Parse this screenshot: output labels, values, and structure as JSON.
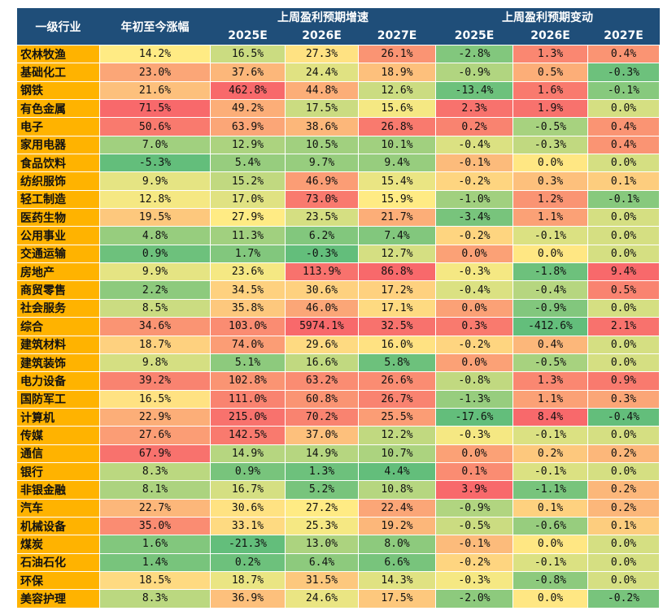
{
  "header": {
    "industry": "一级行业",
    "ytd": "年初至今涨幅",
    "groups": [
      "上周盈利预期增速",
      "上周盈利预期变动"
    ],
    "years": [
      "2025E",
      "2026E",
      "2027E",
      "2025E",
      "2026E",
      "2027E"
    ]
  },
  "table": {
    "rows": [
      [
        "农林牧渔",
        "14.2%",
        "16.5%",
        "27.3%",
        "26.1%",
        "-2.8%",
        "1.3%",
        "0.4%"
      ],
      [
        "基础化工",
        "23.0%",
        "37.6%",
        "24.4%",
        "18.9%",
        "-0.9%",
        "0.5%",
        "-0.3%"
      ],
      [
        "钢铁",
        "21.6%",
        "462.8%",
        "44.8%",
        "12.6%",
        "-13.4%",
        "1.6%",
        "-0.1%"
      ],
      [
        "有色金属",
        "71.5%",
        "49.2%",
        "17.5%",
        "15.6%",
        "2.3%",
        "1.9%",
        "0.0%"
      ],
      [
        "电子",
        "50.6%",
        "63.9%",
        "38.6%",
        "26.8%",
        "0.2%",
        "-0.5%",
        "0.4%"
      ],
      [
        "家用电器",
        "7.0%",
        "12.9%",
        "10.5%",
        "10.1%",
        "-0.4%",
        "-0.3%",
        "0.4%"
      ],
      [
        "食品饮料",
        "-5.3%",
        "5.4%",
        "9.7%",
        "9.4%",
        "-0.1%",
        "0.0%",
        "0.0%"
      ],
      [
        "纺织服饰",
        "9.9%",
        "15.2%",
        "46.9%",
        "15.4%",
        "-0.2%",
        "0.3%",
        "0.1%"
      ],
      [
        "轻工制造",
        "12.8%",
        "17.0%",
        "73.0%",
        "15.9%",
        "-1.0%",
        "1.2%",
        "-0.1%"
      ],
      [
        "医药生物",
        "19.5%",
        "27.9%",
        "23.5%",
        "21.7%",
        "-3.4%",
        "1.1%",
        "0.0%"
      ],
      [
        "公用事业",
        "4.8%",
        "11.3%",
        "6.2%",
        "7.4%",
        "-0.2%",
        "-0.1%",
        "0.0%"
      ],
      [
        "交通运输",
        "0.9%",
        "1.7%",
        "-0.3%",
        "12.7%",
        "0.0%",
        "0.0%",
        "0.0%"
      ],
      [
        "房地产",
        "9.9%",
        "23.6%",
        "113.9%",
        "86.8%",
        "-0.3%",
        "-1.8%",
        "9.4%"
      ],
      [
        "商贸零售",
        "2.2%",
        "34.5%",
        "30.6%",
        "17.2%",
        "-0.4%",
        "-0.4%",
        "0.5%"
      ],
      [
        "社会服务",
        "8.5%",
        "35.8%",
        "46.0%",
        "17.1%",
        "0.0%",
        "-0.9%",
        "0.0%"
      ],
      [
        "综合",
        "34.6%",
        "103.0%",
        "5974.1%",
        "32.5%",
        "0.3%",
        "-412.6%",
        "2.1%"
      ],
      [
        "建筑材料",
        "18.7%",
        "74.0%",
        "29.6%",
        "16.0%",
        "-0.2%",
        "0.4%",
        "0.0%"
      ],
      [
        "建筑装饰",
        "9.8%",
        "5.1%",
        "16.6%",
        "5.8%",
        "0.0%",
        "-0.5%",
        "0.0%"
      ],
      [
        "电力设备",
        "39.2%",
        "102.8%",
        "63.2%",
        "26.6%",
        "-0.8%",
        "1.3%",
        "0.9%"
      ],
      [
        "国防军工",
        "16.5%",
        "111.0%",
        "60.8%",
        "26.7%",
        "-1.3%",
        "1.1%",
        "0.3%"
      ],
      [
        "计算机",
        "22.9%",
        "215.0%",
        "70.2%",
        "25.5%",
        "-17.6%",
        "8.4%",
        "-0.4%"
      ],
      [
        "传媒",
        "27.6%",
        "142.5%",
        "37.0%",
        "12.2%",
        "-0.3%",
        "-0.1%",
        "0.0%"
      ],
      [
        "通信",
        "67.9%",
        "14.9%",
        "14.9%",
        "10.7%",
        "0.0%",
        "0.2%",
        "0.2%"
      ],
      [
        "银行",
        "8.3%",
        "0.9%",
        "1.3%",
        "4.4%",
        "0.1%",
        "-0.1%",
        "0.0%"
      ],
      [
        "非银金融",
        "8.1%",
        "16.7%",
        "5.2%",
        "10.8%",
        "3.9%",
        "-1.1%",
        "0.2%"
      ],
      [
        "汽车",
        "22.7%",
        "30.6%",
        "27.2%",
        "22.4%",
        "-0.9%",
        "0.1%",
        "0.2%"
      ],
      [
        "机械设备",
        "35.0%",
        "33.1%",
        "25.3%",
        "19.2%",
        "-0.5%",
        "-0.6%",
        "0.1%"
      ],
      [
        "煤炭",
        "1.6%",
        "-21.3%",
        "13.0%",
        "8.0%",
        "-0.1%",
        "0.0%",
        "0.0%"
      ],
      [
        "石油石化",
        "1.4%",
        "0.2%",
        "6.4%",
        "6.6%",
        "-0.2%",
        "-0.1%",
        "0.0%"
      ],
      [
        "环保",
        "18.5%",
        "18.7%",
        "31.5%",
        "14.3%",
        "-0.3%",
        "-0.8%",
        "0.0%"
      ],
      [
        "美容护理",
        "8.3%",
        "36.9%",
        "24.6%",
        "17.5%",
        "-2.0%",
        "0.0%",
        "-0.2%"
      ]
    ]
  }
}
